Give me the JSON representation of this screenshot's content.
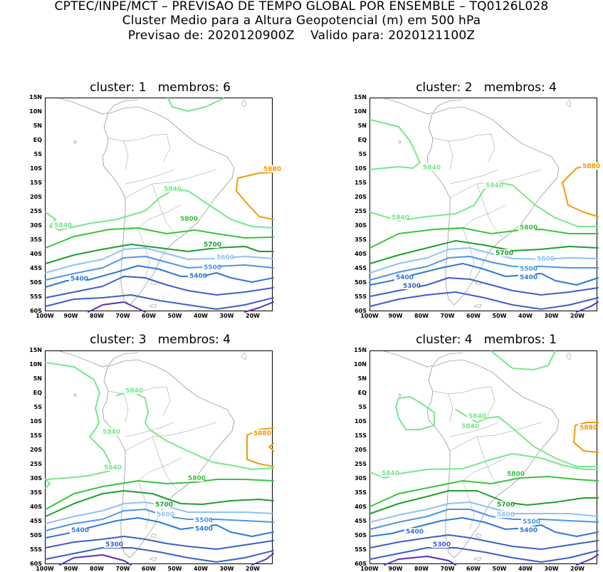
{
  "header": {
    "line1": "CPTEC/INPE/MCT – PREVISAO DE TEMPO GLOBAL POR ENSEMBLE – TQ0126L028",
    "line2": "Cluster Medio para a Altura Geopotencial (m) em 500 hPa",
    "line3": "Previsao de: 2020120900Z    Valido para: 2020121100Z"
  },
  "lat_ticks": [
    "15N",
    "10N",
    "5N",
    "EQ",
    "5S",
    "10S",
    "15S",
    "20S",
    "25S",
    "30S",
    "35S",
    "40S",
    "45S",
    "50S",
    "55S",
    "60S"
  ],
  "lon_ticks": [
    "100W",
    "90W",
    "80W",
    "70W",
    "60W",
    "50W",
    "40W",
    "30W",
    "20W"
  ],
  "colors": {
    "c5300": "#3a5fc8",
    "c5400": "#2f78d6",
    "c5500": "#4c96e6",
    "c5600": "#8ec2f4",
    "c5700": "#1e9e2f",
    "c5800": "#37c43e",
    "c5840": "#77e88a",
    "c5880": "#f19b07",
    "deep": "#5b2fb5",
    "land": "#777777"
  },
  "panels": [
    {
      "title": "cluster: 1   membros: 6",
      "labels": [
        {
          "text": "5880",
          "color": "c5880"
        },
        {
          "text": "5840",
          "color": "c5840"
        },
        {
          "text": "5840",
          "color": "c5840"
        },
        {
          "text": "5800",
          "color": "c5800"
        },
        {
          "text": "5700",
          "color": "c5700"
        },
        {
          "text": "5600",
          "color": "c5600"
        },
        {
          "text": "5500",
          "color": "c5500"
        },
        {
          "text": "5400",
          "color": "c5400"
        },
        {
          "text": "5400",
          "color": "c5400"
        }
      ]
    },
    {
      "title": "cluster: 2   membros: 4",
      "labels": [
        {
          "text": "5880",
          "color": "c5880"
        },
        {
          "text": "5840",
          "color": "c5840"
        },
        {
          "text": "5840",
          "color": "c5840"
        },
        {
          "text": "5840",
          "color": "c5840"
        },
        {
          "text": "5800",
          "color": "c5800"
        },
        {
          "text": "5700",
          "color": "c5700"
        },
        {
          "text": "5600",
          "color": "c5600"
        },
        {
          "text": "5500",
          "color": "c5500"
        },
        {
          "text": "5400",
          "color": "c5400"
        },
        {
          "text": "5400",
          "color": "c5400"
        },
        {
          "text": "5300",
          "color": "c5300"
        }
      ]
    },
    {
      "title": "cluster: 3   membros: 4",
      "labels": [
        {
          "text": "5840",
          "color": "c5840"
        },
        {
          "text": "5840",
          "color": "c5840"
        },
        {
          "text": "5840",
          "color": "c5840"
        },
        {
          "text": "5880",
          "color": "c5880"
        },
        {
          "text": "5800",
          "color": "c5800"
        },
        {
          "text": "5700",
          "color": "c5700"
        },
        {
          "text": "5600",
          "color": "c5600"
        },
        {
          "text": "5500",
          "color": "c5500"
        },
        {
          "text": "5400",
          "color": "c5400"
        },
        {
          "text": "5400",
          "color": "c5400"
        },
        {
          "text": "5300",
          "color": "c5300"
        }
      ]
    },
    {
      "title": "cluster: 4   membros: 1",
      "labels": [
        {
          "text": "5840",
          "color": "c5840"
        },
        {
          "text": "5840",
          "color": "c5840"
        },
        {
          "text": "5880",
          "color": "c5880"
        },
        {
          "text": "5840",
          "color": "c5840"
        },
        {
          "text": "5800",
          "color": "c5800"
        },
        {
          "text": "5700",
          "color": "c5700"
        },
        {
          "text": "5600",
          "color": "c5600"
        },
        {
          "text": "5500",
          "color": "c5500"
        },
        {
          "text": "5400",
          "color": "c5400"
        },
        {
          "text": "5400",
          "color": "c5400"
        },
        {
          "text": "5300",
          "color": "c5300"
        }
      ]
    }
  ]
}
